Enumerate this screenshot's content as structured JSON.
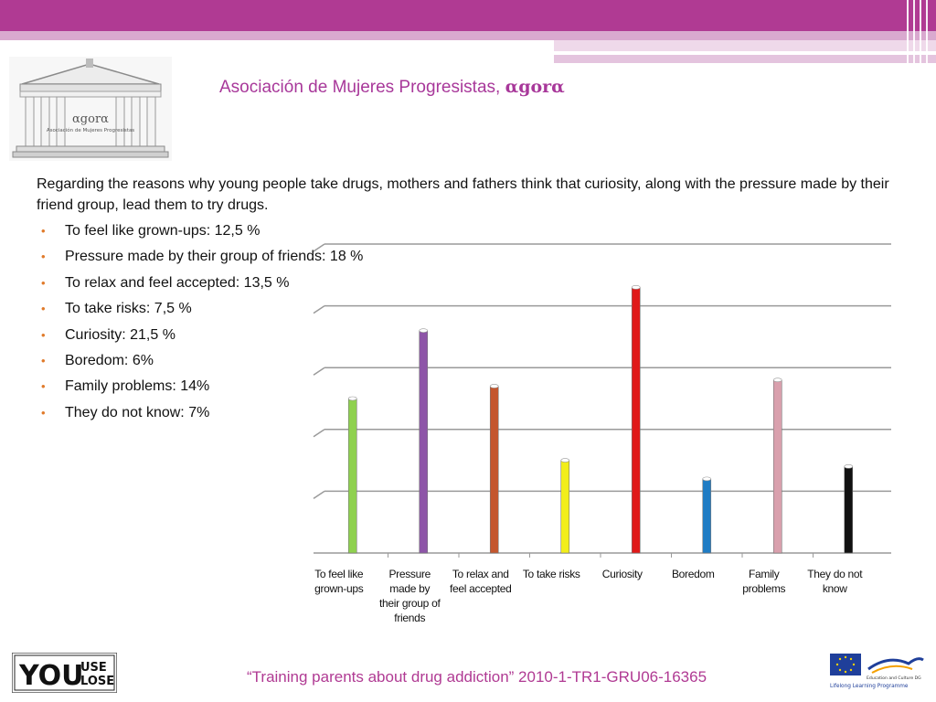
{
  "header": {
    "title_text": "Asociación de Mujeres Progresistas, ",
    "title_brand": "αgorα"
  },
  "logo": {
    "brand": "αgorα",
    "caption": "Asociación de Mujeres Progresistas"
  },
  "intro": "Regarding the reasons why young people take drugs, mothers and fathers think that curiosity, along with the pressure made by their friend group, lead them to try drugs.",
  "bullets": [
    "To feel like grown-ups: 12,5 %",
    "Pressure made by their group of friends: 18 %",
    "To relax and feel accepted: 13,5 %",
    "To take risks: 7,5 %",
    "Curiosity: 21,5 %",
    "Boredom: 6%",
    "Family problems: 14%",
    "They do not know: 7%"
  ],
  "chart_data": {
    "type": "bar",
    "categories": [
      [
        "To feel like",
        "grown-ups"
      ],
      [
        "Pressure",
        "made by",
        "their group of",
        "friends"
      ],
      [
        "To relax and",
        "feel accepted"
      ],
      [
        "To take risks"
      ],
      [
        "Curiosity"
      ],
      [
        "Boredom"
      ],
      [
        "Family",
        "problems"
      ],
      [
        "They do not",
        "know"
      ]
    ],
    "values": [
      12.5,
      18,
      13.5,
      7.5,
      21.5,
      6,
      14,
      7
    ],
    "colors": [
      "#8fd14f",
      "#8e55a8",
      "#c4562e",
      "#f2ee1a",
      "#e01818",
      "#1f7cc4",
      "#d9a0ad",
      "#111111"
    ],
    "ylim": [
      0,
      25
    ],
    "grid": true,
    "legend": "none",
    "title": "",
    "xlabel": "",
    "ylabel": ""
  },
  "footer": {
    "text": "“Training parents about drug addiction” 2010-1-TR1-GRU06-16365"
  },
  "left_logo": {
    "you": "YOU",
    "use": "USE",
    "lose": "LOSE"
  },
  "right_logo": {
    "line1": "Education and Culture DG",
    "line2": "Lifelong Learning Programme"
  }
}
